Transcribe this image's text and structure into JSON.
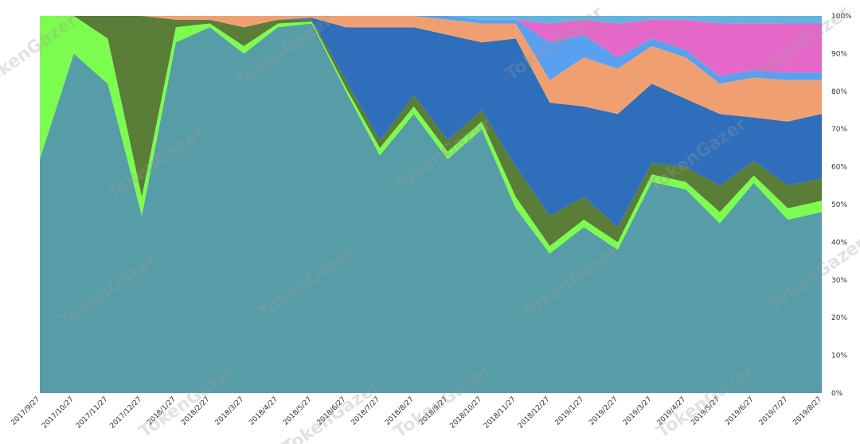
{
  "chart_data": {
    "type": "area",
    "stacked": "percent",
    "title": "",
    "xlabel": "",
    "ylabel": "",
    "ylim": [
      0,
      100
    ],
    "grid": false,
    "legend": "none",
    "y_ticks": [
      "0%",
      "10%",
      "20%",
      "30%",
      "40%",
      "50%",
      "60%",
      "70%",
      "80%",
      "90%",
      "100%"
    ],
    "categories": [
      "2017/9/27",
      "2017/10/27",
      "2017/11/27",
      "2017/12/27",
      "2018/1/27",
      "2018/2/27",
      "2018/3/27",
      "2018/4/27",
      "2018/5/27",
      "2018/6/27",
      "2018/7/27",
      "2018/8/27",
      "2018/9/27",
      "2018/10/27",
      "2018/11/27",
      "2018/12/27",
      "2019/1/27",
      "2019/2/27",
      "2019/3/27",
      "2019/4/27",
      "2019/5/27",
      "2019/6/27",
      "2019/7/27",
      "2019/8/27"
    ],
    "series": [
      {
        "color": "#569da8",
        "values": [
          62,
          90,
          82,
          47,
          93,
          97,
          90,
          97,
          98,
          80,
          63,
          74,
          62,
          70,
          49,
          37,
          44,
          38,
          56,
          54,
          45,
          58,
          46,
          48
        ]
      },
      {
        "color": "#7cfc4e",
        "values": [
          38,
          10,
          12,
          5,
          4,
          1,
          2,
          1,
          0.5,
          1,
          2,
          2,
          2,
          2,
          3,
          2,
          2,
          2,
          2,
          2,
          3,
          2,
          3,
          3
        ]
      },
      {
        "color": "#5a7d37",
        "values": [
          0,
          0,
          6,
          48,
          2,
          1,
          5,
          1,
          0.5,
          2,
          2,
          3,
          3,
          3,
          8,
          8,
          6,
          4,
          3,
          4,
          7,
          4,
          6,
          6
        ]
      },
      {
        "color": "#2f6ebb",
        "values": [
          0,
          0,
          0,
          0,
          0,
          0,
          0,
          0,
          0.5,
          14,
          30,
          18,
          28,
          18,
          34,
          30,
          24,
          30,
          21,
          18,
          19,
          12,
          17,
          17
        ]
      },
      {
        "color": "#f0a070",
        "values": [
          0,
          0,
          0,
          0,
          1,
          1,
          3,
          1,
          0.5,
          3,
          3,
          3,
          4,
          5,
          4,
          6,
          13,
          12,
          10,
          11,
          8,
          11,
          11,
          9
        ]
      },
      {
        "color": "#5aa0f0",
        "values": [
          0,
          0,
          0,
          0,
          0,
          0,
          0,
          0,
          0,
          0,
          0,
          0,
          1,
          1,
          1,
          10,
          6,
          3,
          2,
          2,
          2,
          2,
          2,
          2
        ]
      },
      {
        "color": "#e468c8",
        "values": [
          0,
          0,
          0,
          0,
          0,
          0,
          0,
          0,
          0,
          0,
          0,
          0,
          0,
          0,
          0,
          5,
          4,
          9,
          5,
          8,
          14,
          13,
          13,
          13
        ]
      },
      {
        "color": "#62b4e0",
        "values": [
          0,
          0,
          0,
          0,
          0,
          0,
          0,
          0,
          0,
          0,
          0,
          0,
          0,
          1,
          1,
          2,
          1,
          2,
          1,
          1,
          2,
          2,
          2,
          2
        ]
      }
    ]
  },
  "watermark_text": "TokenGazer"
}
